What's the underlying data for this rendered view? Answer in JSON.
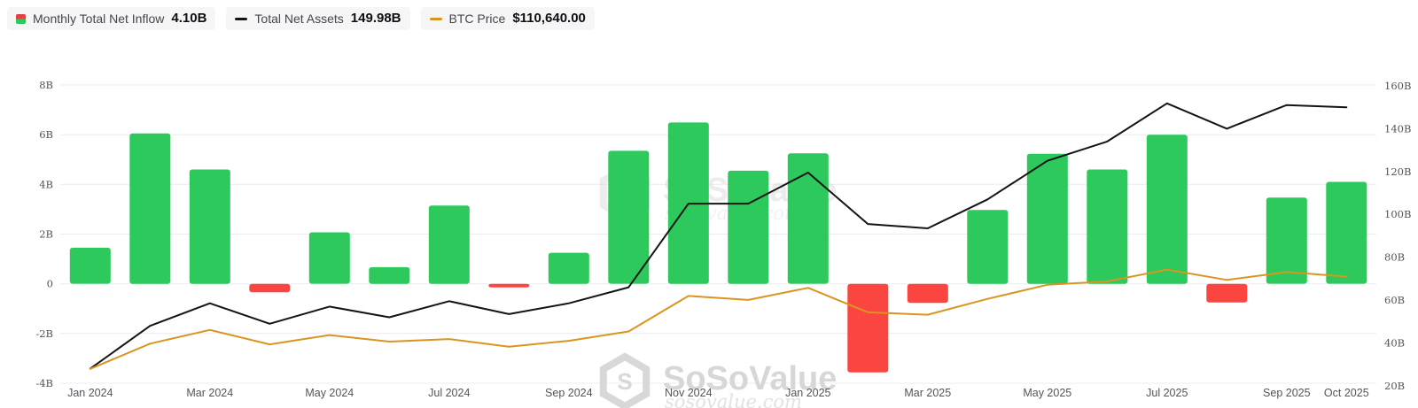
{
  "legend": {
    "items": [
      {
        "label": "Monthly Total Net Inflow",
        "value": "4.10B",
        "icon": "inflow-split-icon",
        "color_positive": "#2dc95c",
        "color_negative": "#fa4540"
      },
      {
        "label": "Total Net Assets",
        "value": "149.98B",
        "icon": "black-dash-icon",
        "color": "#141414"
      },
      {
        "label": "BTC Price",
        "value": "$110,640.00",
        "icon": "orange-dash-icon",
        "color": "#d9951f"
      }
    ]
  },
  "watermark": {
    "brand": "SoSoValue",
    "domain": "sosovalue.com",
    "logo": "cube-logo-icon"
  },
  "chart_data": {
    "type": "bar+line combo",
    "categories": [
      "Jan 2024",
      "Feb 2024",
      "Mar 2024",
      "Apr 2024",
      "May 2024",
      "Jun 2024",
      "Jul 2024",
      "Aug 2024",
      "Sep 2024",
      "Oct 2024",
      "Nov 2024",
      "Dec 2024",
      "Jan 2025",
      "Feb 2025",
      "Mar 2025",
      "Apr 2025",
      "May 2025",
      "Jun 2025",
      "Jul 2025",
      "Aug 2025",
      "Sep 2025",
      "Oct 2025"
    ],
    "x_ticks": {
      "labels": [
        "Jan 2024",
        "Mar 2024",
        "May 2024",
        "Jul 2024",
        "Sep 2024",
        "Nov 2024",
        "Jan 2025",
        "Mar 2025",
        "May 2025",
        "Jul 2025",
        "Sep 2025",
        "Oct 2025"
      ],
      "indices": [
        0,
        2,
        4,
        6,
        8,
        10,
        12,
        14,
        16,
        18,
        20,
        21
      ]
    },
    "left_axis": {
      "tick_labels": [
        "8B",
        "6B",
        "4B",
        "2B",
        "0",
        "-2B",
        "-4B"
      ],
      "tick_values": [
        8,
        6,
        4,
        2,
        0,
        -2,
        -4
      ],
      "range": [
        -4,
        8
      ],
      "grid": true
    },
    "right_axis": {
      "tick_labels": [
        "160B",
        "140B",
        "120B",
        "100B",
        "80B",
        "60B",
        "40B",
        "20B"
      ],
      "tick_values": [
        160,
        140,
        120,
        100,
        80,
        60,
        40,
        20
      ],
      "range": [
        21.23,
        160.39
      ]
    },
    "btc_axis": {
      "range": [
        32000,
        252000
      ],
      "hidden": true
    },
    "series": [
      {
        "name": "Monthly Total Net Inflow",
        "type": "bar",
        "unit": "B",
        "axis": "left",
        "values": [
          1.45,
          6.05,
          4.6,
          -0.34,
          2.07,
          0.67,
          3.15,
          -0.09,
          1.25,
          5.35,
          6.49,
          4.55,
          5.25,
          -3.56,
          -0.77,
          2.97,
          5.23,
          4.6,
          6.0,
          -0.75,
          3.47,
          4.1
        ]
      },
      {
        "name": "Total Net Assets",
        "type": "line",
        "unit": "B",
        "axis": "right",
        "color": "#141414",
        "values": [
          28,
          48,
          58.5,
          49,
          57,
          52,
          59.5,
          53.5,
          58.5,
          66,
          105,
          105,
          119.5,
          95.5,
          93.5,
          107,
          125,
          134,
          151.8,
          140,
          151,
          149.98
        ]
      },
      {
        "name": "BTC Price",
        "type": "line",
        "unit": "USD",
        "axis": "btc",
        "color": "#d9951f",
        "values": [
          42580,
          61200,
          71300,
          60640,
          67500,
          62700,
          64600,
          58970,
          63300,
          70200,
          96400,
          93400,
          102400,
          84300,
          82500,
          94200,
          104600,
          107100,
          115800,
          108200,
          114000,
          110640
        ]
      }
    ],
    "colors": {
      "bar_positive": "#2dc95c",
      "bar_negative": "#fa4540",
      "grid": "#ececf0",
      "tick_text": "#54545c",
      "watermark": "#d8d8d8"
    }
  }
}
